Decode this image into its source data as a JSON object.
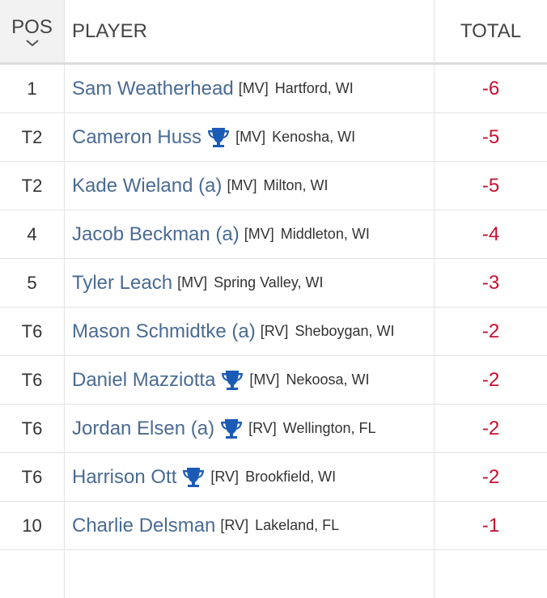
{
  "header": {
    "pos": "POS",
    "player": "PLAYER",
    "total": "TOTAL"
  },
  "rows": [
    {
      "pos": "1",
      "name": "Sam Weatherhead",
      "trophy": false,
      "tour": "[MV]",
      "hometown": "Hartford, WI",
      "total": "-6"
    },
    {
      "pos": "T2",
      "name": "Cameron Huss",
      "trophy": true,
      "tour": "[MV]",
      "hometown": "Kenosha, WI",
      "total": "-5"
    },
    {
      "pos": "T2",
      "name": "Kade Wieland (a)",
      "trophy": false,
      "tour": "[MV]",
      "hometown": "Milton, WI",
      "total": "-5"
    },
    {
      "pos": "4",
      "name": "Jacob Beckman (a)",
      "trophy": false,
      "tour": "[MV]",
      "hometown": "Middleton, WI",
      "total": "-4"
    },
    {
      "pos": "5",
      "name": "Tyler Leach",
      "trophy": false,
      "tour": "[MV]",
      "hometown": "Spring Valley, WI",
      "total": "-3"
    },
    {
      "pos": "T6",
      "name": "Mason Schmidtke (a)",
      "trophy": false,
      "tour": "[RV]",
      "hometown": "Sheboygan, WI",
      "total": "-2"
    },
    {
      "pos": "T6",
      "name": "Daniel Mazziotta",
      "trophy": true,
      "tour": "[MV]",
      "hometown": "Nekoosa, WI",
      "total": "-2"
    },
    {
      "pos": "T6",
      "name": "Jordan Elsen (a)",
      "trophy": true,
      "tour": "[RV]",
      "hometown": "Wellington, FL",
      "total": "-2"
    },
    {
      "pos": "T6",
      "name": "Harrison Ott",
      "trophy": true,
      "tour": "[RV]",
      "hometown": "Brookfield, WI",
      "total": "-2"
    },
    {
      "pos": "10",
      "name": "Charlie Delsman",
      "trophy": false,
      "tour": "[RV]",
      "hometown": "Lakeland, FL",
      "total": "-1"
    }
  ]
}
